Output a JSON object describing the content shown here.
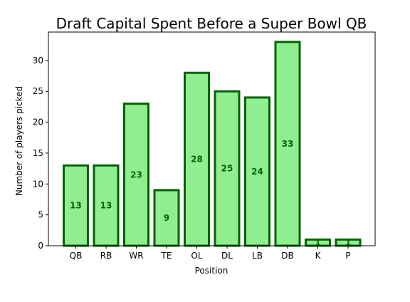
{
  "chart_data": {
    "type": "bar",
    "title": "Draft Capital Spent Before a Super Bowl QB",
    "xlabel": "Position",
    "ylabel": "Number of players picked",
    "categories": [
      "QB",
      "RB",
      "WR",
      "TE",
      "OL",
      "DL",
      "LB",
      "DB",
      "K",
      "P"
    ],
    "values": [
      13,
      13,
      23,
      9,
      28,
      25,
      24,
      33,
      1,
      1
    ],
    "data_labels": [
      "13",
      "13",
      "23",
      "9",
      "28",
      "25",
      "24",
      "33",
      "1",
      "1"
    ],
    "ylim": [
      0,
      34.6
    ],
    "yticks": [
      0,
      5,
      10,
      15,
      20,
      25,
      30
    ],
    "ytick_labels": [
      "0",
      "5",
      "10",
      "15",
      "20",
      "25",
      "30"
    ],
    "grid": false,
    "legend": "none",
    "colors": {
      "bar_fill": "#90ee90",
      "bar_edge": "#006400",
      "label": "#006400"
    }
  }
}
